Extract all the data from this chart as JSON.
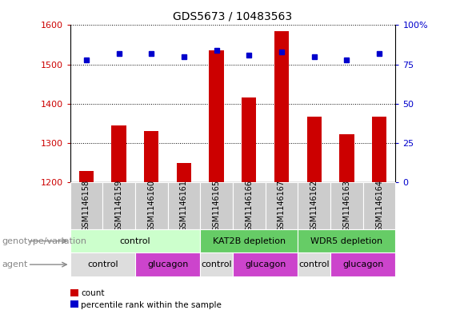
{
  "title": "GDS5673 / 10483563",
  "samples": [
    "GSM1146158",
    "GSM1146159",
    "GSM1146160",
    "GSM1146161",
    "GSM1146165",
    "GSM1146166",
    "GSM1146167",
    "GSM1146162",
    "GSM1146163",
    "GSM1146164"
  ],
  "counts": [
    1228,
    1345,
    1330,
    1248,
    1535,
    1415,
    1585,
    1367,
    1322,
    1367
  ],
  "percentile_ranks": [
    78,
    82,
    82,
    80,
    84,
    81,
    83,
    80,
    78,
    82
  ],
  "ylim_left": [
    1200,
    1600
  ],
  "ylim_right": [
    0,
    100
  ],
  "yticks_left": [
    1200,
    1300,
    1400,
    1500,
    1600
  ],
  "yticks_right": [
    0,
    25,
    50,
    75,
    100
  ],
  "bar_color": "#cc0000",
  "dot_color": "#0000cc",
  "bar_width": 0.45,
  "genotype_groups": [
    {
      "label": "control",
      "start": 0,
      "end": 4,
      "color": "#ccffcc"
    },
    {
      "label": "KAT2B depletion",
      "start": 4,
      "end": 7,
      "color": "#66cc66"
    },
    {
      "label": "WDR5 depletion",
      "start": 7,
      "end": 10,
      "color": "#66cc66"
    }
  ],
  "agent_groups": [
    {
      "label": "control",
      "start": 0,
      "end": 2,
      "color": "#dddddd"
    },
    {
      "label": "glucagon",
      "start": 2,
      "end": 4,
      "color": "#cc44cc"
    },
    {
      "label": "control",
      "start": 4,
      "end": 5,
      "color": "#dddddd"
    },
    {
      "label": "glucagon",
      "start": 5,
      "end": 7,
      "color": "#cc44cc"
    },
    {
      "label": "control",
      "start": 7,
      "end": 8,
      "color": "#dddddd"
    },
    {
      "label": "glucagon",
      "start": 8,
      "end": 10,
      "color": "#cc44cc"
    }
  ],
  "legend_count_label": "count",
  "legend_percentile_label": "percentile rank within the sample",
  "genotype_row_label": "genotype/variation",
  "agent_row_label": "agent",
  "sample_box_color": "#cccccc",
  "title_fontsize": 10,
  "tick_fontsize": 8,
  "sample_fontsize": 7,
  "row_label_fontsize": 8,
  "group_fontsize": 8
}
